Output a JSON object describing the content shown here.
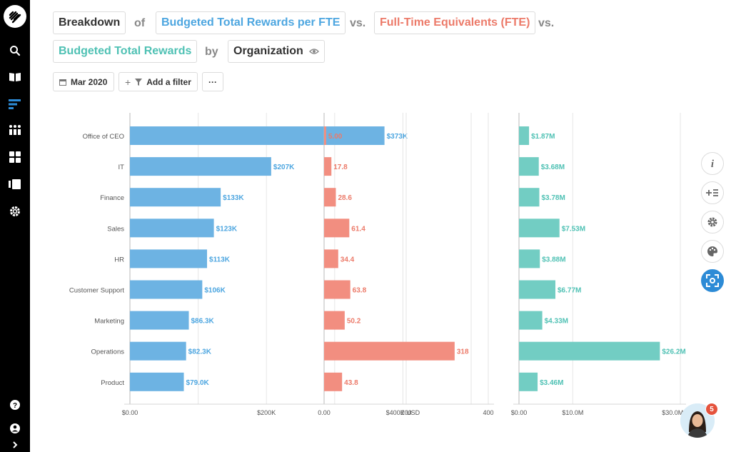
{
  "header": {
    "breakdown_label": "Breakdown",
    "of_label": "of",
    "metric1_label": "Budgeted Total Rewards per FTE",
    "vs1_label": "vs.",
    "metric2_label": "Full-Time Equivalents (FTE)",
    "vs2_label": "vs.",
    "metric3_label": "Budgeted Total Rewards",
    "by_label": "by",
    "dimension_label": "Organization"
  },
  "toolbar": {
    "date_label": "Mar 2020",
    "filter_label": "Add a filter",
    "more_label": "···"
  },
  "side_actions": [
    "info-icon",
    "add-list-icon",
    "gear-icon",
    "palette-icon",
    "focus-icon"
  ],
  "notification_count": "5",
  "colors": {
    "metric1": "#6db3e3",
    "metric2": "#f28e80",
    "metric3": "#72cdc3",
    "metric1_text": "#4da6e0",
    "metric2_text": "#ec7a69",
    "metric3_text": "#4fc1b4",
    "active": "#2d8bd6"
  },
  "chart_data": {
    "type": "bar",
    "orientation": "horizontal",
    "categories": [
      "Office of CEO",
      "IT",
      "Finance",
      "Sales",
      "HR",
      "Customer Support",
      "Marketing",
      "Operations",
      "Product"
    ],
    "panels": [
      {
        "name": "Budgeted Total Rewards per FTE",
        "values": [
          373000,
          207000,
          133000,
          123000,
          113000,
          106000,
          86300,
          82300,
          79000
        ],
        "labels": [
          "$373K",
          "$207K",
          "$133K",
          "$123K",
          "$113K",
          "$106K",
          "$86.3K",
          "$82.3K",
          "$79.0K"
        ],
        "xlim": [
          0,
          500000
        ],
        "ticks": [
          0,
          200000,
          400000
        ],
        "tick_labels": [
          "$0.00",
          "$200K",
          "$400K USD"
        ],
        "gridlines": [
          0,
          100000,
          200000,
          300000,
          400000,
          500000
        ]
      },
      {
        "name": "Full-Time Equivalents (FTE)",
        "values": [
          5.0,
          17.8,
          28.6,
          61.4,
          34.4,
          63.8,
          50.2,
          318,
          43.8
        ],
        "labels": [
          "5.00",
          "17.8",
          "28.6",
          "61.4",
          "34.4",
          "63.8",
          "50.2",
          "318",
          "43.8"
        ],
        "xlim": [
          0,
          400
        ],
        "ticks": [
          0,
          200,
          400
        ],
        "tick_labels": [
          "0.00",
          "200",
          "400"
        ],
        "gridlines": [
          0,
          200,
          400
        ]
      },
      {
        "name": "Budgeted Total Rewards",
        "values": [
          1870000,
          3680000,
          3780000,
          7530000,
          3880000,
          6770000,
          4330000,
          26200000,
          3460000
        ],
        "labels": [
          "$1.87M",
          "$3.68M",
          "$3.78M",
          "$7.53M",
          "$3.88M",
          "$6.77M",
          "$4.33M",
          "$26.2M",
          "$3.46M"
        ],
        "xlim": [
          0,
          30000000
        ],
        "ticks": [
          0,
          10000000,
          30000000
        ],
        "tick_labels": [
          "$0.00",
          "$10.0M",
          "$30.0M USD"
        ],
        "gridlines": [
          0,
          10000000,
          30000000
        ]
      }
    ],
    "grid": true,
    "legend": "none"
  }
}
